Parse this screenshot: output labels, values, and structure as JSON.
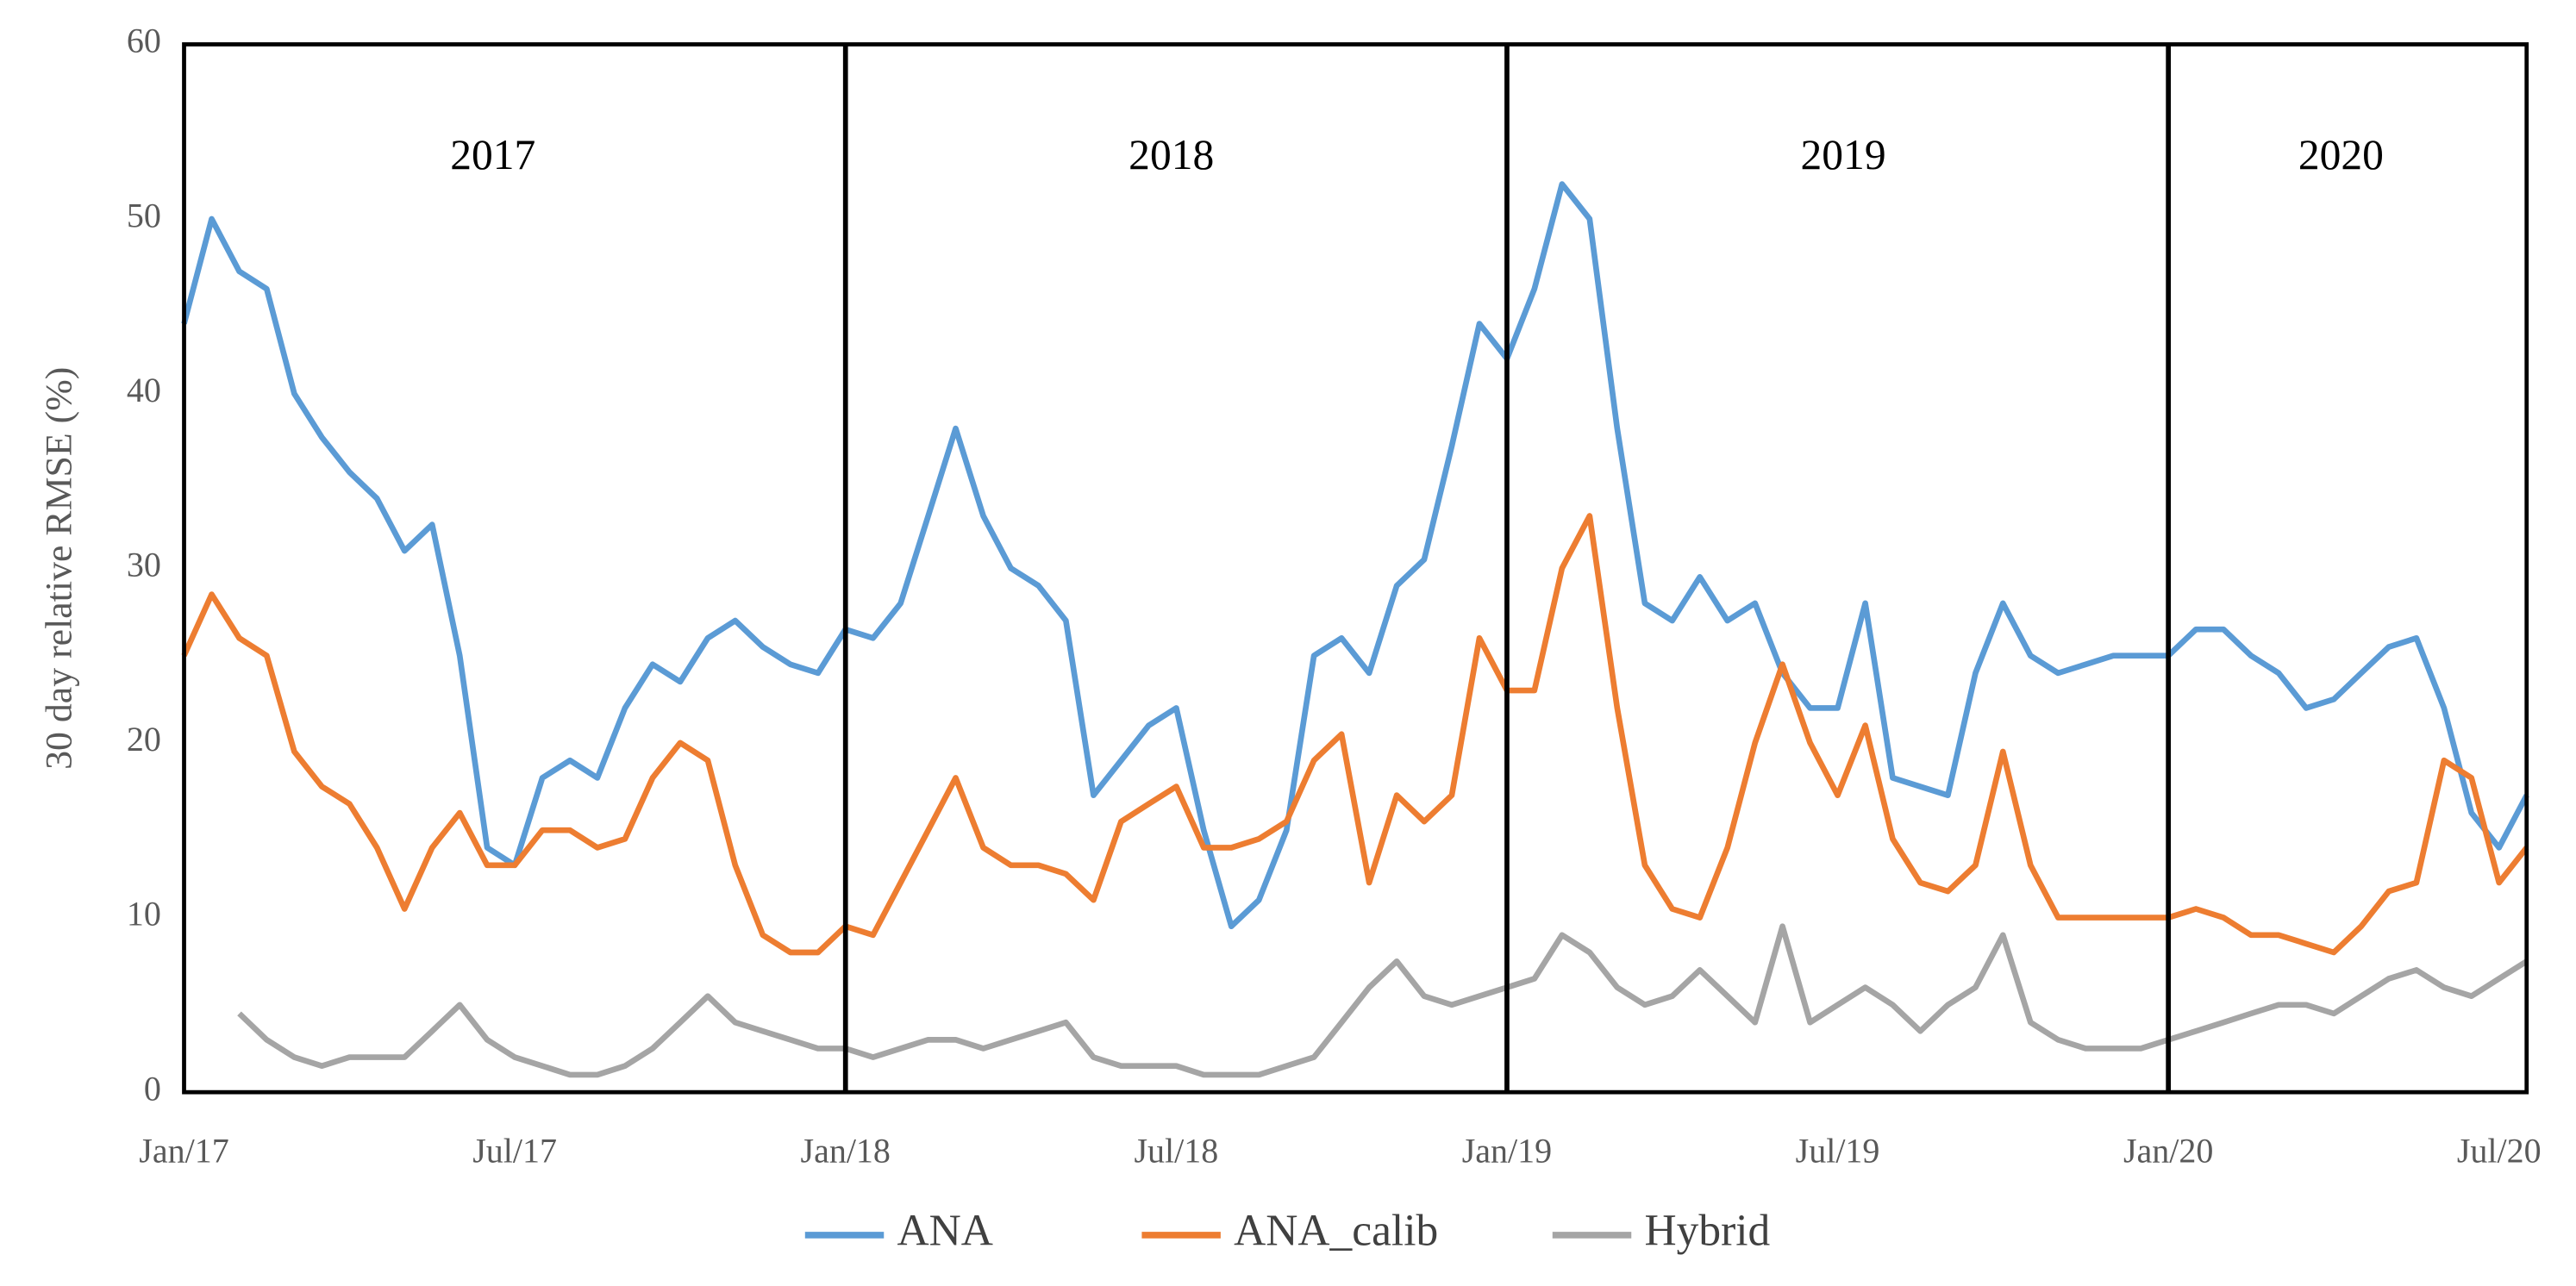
{
  "chart_data": {
    "type": "line",
    "y_label": "30 day relative RMSE (%)",
    "annotations": [
      "2017",
      "2018",
      "2019",
      "2020"
    ],
    "categories": [
      "Jan/17",
      null,
      null,
      null,
      null,
      null,
      null,
      null,
      null,
      null,
      null,
      null,
      "Jul/17",
      null,
      null,
      null,
      null,
      null,
      null,
      null,
      null,
      null,
      null,
      null,
      "Jan/18",
      null,
      null,
      null,
      null,
      null,
      null,
      null,
      null,
      null,
      null,
      null,
      "Jul/18",
      null,
      null,
      null,
      null,
      null,
      null,
      null,
      null,
      null,
      null,
      null,
      "Jan/19",
      null,
      null,
      null,
      null,
      null,
      null,
      null,
      null,
      null,
      null,
      null,
      "Jul/19",
      null,
      null,
      null,
      null,
      null,
      null,
      null,
      null,
      null,
      null,
      null,
      "Jan/20",
      null,
      null,
      null,
      null,
      null,
      null,
      null,
      null,
      null,
      null,
      null,
      "Jul/20",
      null
    ],
    "series": [
      {
        "name": "ANA",
        "color": "#5b9bd5",
        "values": [
          44,
          50,
          47,
          46,
          40,
          37.5,
          35.5,
          34,
          31,
          32.5,
          25,
          14,
          13,
          18,
          19,
          18,
          22,
          24.5,
          23.5,
          26,
          27,
          25.5,
          24.5,
          24,
          26.5,
          26,
          28,
          33,
          38,
          33,
          30,
          29,
          27,
          17,
          19,
          21,
          22,
          15,
          9.5,
          11,
          15,
          25,
          26,
          24,
          29,
          30.5,
          37,
          44,
          42,
          46,
          52,
          50,
          38,
          28,
          27,
          29.5,
          27,
          28,
          24,
          22,
          22,
          28,
          18,
          17.5,
          17,
          24,
          28,
          25,
          24,
          24.5,
          25,
          25,
          25,
          26.5,
          26.5,
          25,
          24,
          22,
          22.5,
          24,
          25.5,
          26,
          22,
          16,
          14,
          17
        ]
      },
      {
        "name": "ANA_calib",
        "color": "#ed7d31",
        "values": [
          25,
          28.5,
          26,
          25,
          19.5,
          17.5,
          16.5,
          14,
          10.5,
          14,
          16,
          13,
          13,
          15,
          15,
          14,
          14.5,
          18,
          20,
          19,
          13,
          9,
          8,
          8,
          9.5,
          9,
          12,
          15,
          18,
          14,
          13,
          13,
          12.5,
          11,
          15.5,
          16.5,
          17.5,
          14,
          14,
          14.5,
          15.5,
          19,
          20.5,
          12,
          17,
          15.5,
          17,
          26,
          23,
          23,
          30,
          33,
          22,
          13,
          10.5,
          10,
          14,
          20,
          24.5,
          20,
          17,
          21,
          14.5,
          12,
          11.5,
          13,
          19.5,
          13,
          10,
          10,
          10,
          10,
          10,
          10.5,
          10,
          9,
          9,
          8.5,
          8,
          9.5,
          11.5,
          12,
          19,
          18,
          12,
          14
        ]
      },
      {
        "name": "Hybrid",
        "color": "#a5a5a5",
        "values": [
          null,
          null,
          4.5,
          3,
          2,
          1.5,
          2,
          2,
          2,
          3.5,
          5,
          3,
          2,
          1.5,
          1,
          1,
          1.5,
          2.5,
          4,
          5.5,
          4,
          3.5,
          3,
          2.5,
          2.5,
          2,
          2.5,
          3,
          3,
          2.5,
          3,
          3.5,
          4,
          2,
          1.5,
          1.5,
          1.5,
          1,
          1,
          1,
          1.5,
          2,
          4,
          6,
          7.5,
          5.5,
          5,
          5.5,
          6,
          6.5,
          9,
          8,
          6,
          5,
          5.5,
          7,
          5.5,
          4,
          9.5,
          4,
          5,
          6,
          5,
          3.5,
          5,
          6,
          9,
          4,
          3,
          2.5,
          2.5,
          2.5,
          3,
          3.5,
          4,
          4.5,
          5,
          5,
          4.5,
          5.5,
          6.5,
          7,
          6,
          5.5,
          6.5,
          7.5
        ]
      }
    ],
    "ylim": [
      0,
      60
    ],
    "yticks": [
      0,
      10,
      20,
      30,
      40,
      50,
      60
    ],
    "grid": false,
    "legend": "bottom"
  }
}
